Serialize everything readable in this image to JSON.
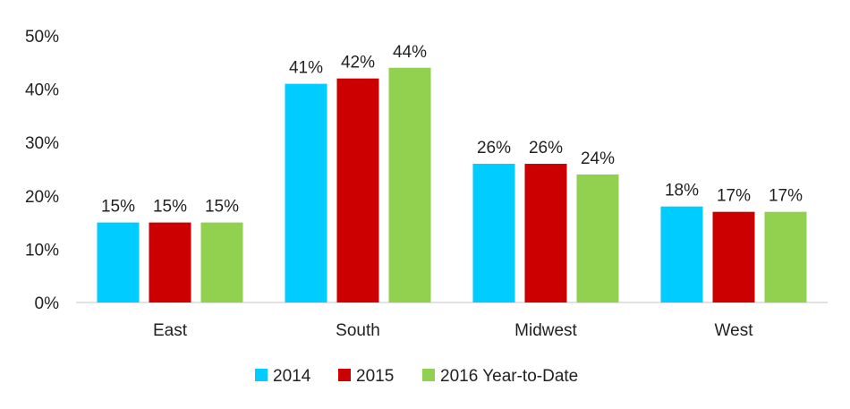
{
  "chart_data": {
    "type": "bar",
    "categories": [
      "East",
      "South",
      "Midwest",
      "West"
    ],
    "series": [
      {
        "name": "2014",
        "values": [
          15,
          41,
          26,
          18
        ],
        "color": "#00CCFF"
      },
      {
        "name": "2015",
        "values": [
          15,
          42,
          26,
          17
        ],
        "color": "#CC0000"
      },
      {
        "name": "2016 Year-to-Date",
        "values": [
          15,
          44,
          24,
          17
        ],
        "color": "#92D050"
      }
    ],
    "data_labels": [
      [
        "15%",
        "41%",
        "26%",
        "18%"
      ],
      [
        "15%",
        "42%",
        "26%",
        "17%"
      ],
      [
        "15%",
        "44%",
        "24%",
        "17%"
      ]
    ],
    "y_ticks": [
      "0%",
      "10%",
      "20%",
      "30%",
      "40%",
      "50%"
    ],
    "ylim": [
      0,
      50
    ],
    "grid": false,
    "legend": "bottom",
    "title": "",
    "xlabel": "",
    "ylabel": ""
  }
}
